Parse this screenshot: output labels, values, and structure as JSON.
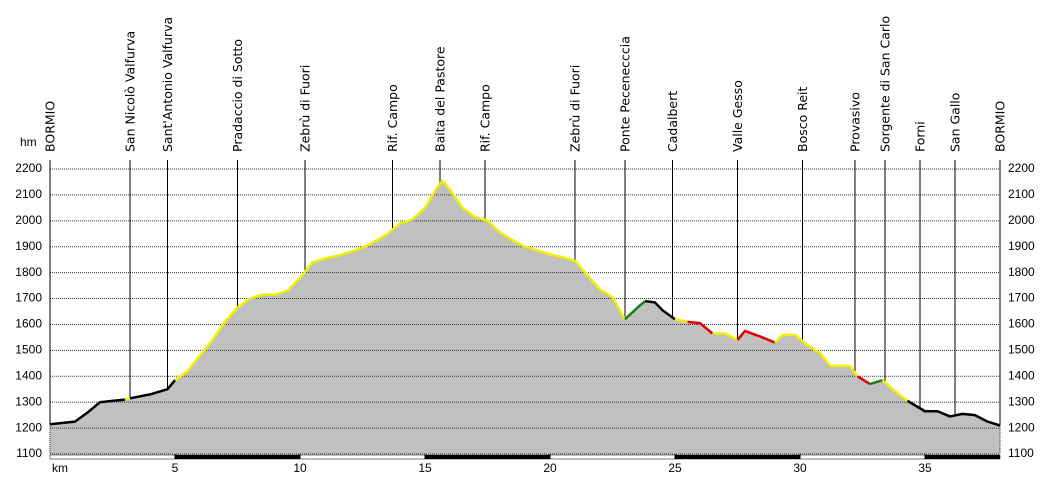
{
  "chart_data": {
    "type": "line",
    "x_label": "km",
    "y_label": "hm",
    "xlim": [
      0,
      38
    ],
    "xticks": [
      5,
      10,
      15,
      20,
      25,
      30,
      35
    ],
    "ylim": [
      1100,
      2200
    ],
    "yticks": [
      1100,
      1200,
      1300,
      1400,
      1500,
      1600,
      1700,
      1800,
      1900,
      2000,
      2100,
      2200
    ],
    "grid": true,
    "area_color": "#c0c0c0",
    "waypoints": [
      {
        "name": "BORMIO",
        "km": 0
      },
      {
        "name": "San Nicolò Valfurva",
        "km": 3.2
      },
      {
        "name": "Sant'Antonio Valfurva",
        "km": 4.7
      },
      {
        "name": "Pradaccio di Sotto",
        "km": 7.5
      },
      {
        "name": "Zebrù di Fuori",
        "km": 10.2
      },
      {
        "name": "Rif. Campo",
        "km": 13.7
      },
      {
        "name": "Baita del Pastore",
        "km": 15.6
      },
      {
        "name": "Rif. Campo",
        "km": 17.4
      },
      {
        "name": "Zebrù di Fuori",
        "km": 21
      },
      {
        "name": "Ponte Pecenecccia",
        "km": 23
      },
      {
        "name": "Cadalbert",
        "km": 24.9
      },
      {
        "name": "Valle Gesso",
        "km": 27.5
      },
      {
        "name": "Bosco Reit",
        "km": 30.1
      },
      {
        "name": "Provasivo",
        "km": 32.2
      },
      {
        "name": "Sorgente di San Carlo",
        "km": 33.4
      },
      {
        "name": "Forni",
        "km": 34.8
      },
      {
        "name": "San Gallo",
        "km": 36.2
      },
      {
        "name": "BORMIO",
        "km": 38
      }
    ],
    "series": [
      {
        "color": "#000000",
        "x": [
          0,
          1,
          1.5,
          2,
          2.5,
          3
        ],
        "values": [
          1215,
          1225,
          1260,
          1300,
          1305,
          1310
        ]
      },
      {
        "color": "#f0f000",
        "x": [
          3,
          3.2
        ],
        "values": [
          1310,
          1315
        ]
      },
      {
        "color": "#000000",
        "x": [
          3.2,
          4,
          4.7,
          5
        ],
        "values": [
          1315,
          1330,
          1350,
          1385
        ]
      },
      {
        "color": "#f0f000",
        "x": [
          5,
          5.5,
          6,
          6.5,
          7,
          7.5,
          8,
          8.5,
          9,
          9.5,
          10,
          10.5,
          11,
          11.5,
          12,
          12.5,
          13,
          13.5,
          14,
          14.5,
          15,
          15.5,
          15.7,
          16,
          16.5,
          17,
          17.5,
          18,
          18.5,
          19,
          19.5,
          20,
          20.5,
          21,
          21.5,
          22,
          22.5,
          23
        ],
        "values": [
          1385,
          1420,
          1480,
          1540,
          1610,
          1665,
          1700,
          1715,
          1715,
          1730,
          1780,
          1840,
          1855,
          1865,
          1880,
          1895,
          1920,
          1950,
          1990,
          2005,
          2050,
          2130,
          2155,
          2120,
          2050,
          2015,
          2000,
          1955,
          1925,
          1900,
          1885,
          1870,
          1860,
          1845,
          1790,
          1735,
          1705,
          1620
        ]
      },
      {
        "color": "#1a7a1a",
        "x": [
          23,
          23.5,
          23.8
        ],
        "values": [
          1620,
          1665,
          1690
        ]
      },
      {
        "color": "#000000",
        "x": [
          23.8,
          24.2,
          24.5,
          25
        ],
        "values": [
          1690,
          1685,
          1655,
          1620
        ]
      },
      {
        "color": "#f0f000",
        "x": [
          25,
          25.5
        ],
        "values": [
          1620,
          1610
        ]
      },
      {
        "color": "#e00000",
        "x": [
          25.5,
          26,
          26.5
        ],
        "values": [
          1610,
          1605,
          1565
        ]
      },
      {
        "color": "#f0f000",
        "x": [
          26.5,
          27,
          27.5
        ],
        "values": [
          1565,
          1565,
          1540
        ]
      },
      {
        "color": "#e00000",
        "x": [
          27.5,
          27.8,
          28.5,
          29
        ],
        "values": [
          1540,
          1575,
          1550,
          1530
        ]
      },
      {
        "color": "#f0f000",
        "x": [
          29,
          29.3,
          29.8,
          30.3,
          30.8,
          31.2,
          32,
          32.3
        ],
        "values": [
          1530,
          1560,
          1560,
          1520,
          1490,
          1440,
          1440,
          1400
        ]
      },
      {
        "color": "#e00000",
        "x": [
          32.3,
          32.8
        ],
        "values": [
          1400,
          1370
        ]
      },
      {
        "color": "#1a7a1a",
        "x": [
          32.8,
          33.3
        ],
        "values": [
          1370,
          1385
        ]
      },
      {
        "color": "#f0f000",
        "x": [
          33.3,
          33.7,
          34.3
        ],
        "values": [
          1385,
          1350,
          1305
        ]
      },
      {
        "color": "#000000",
        "x": [
          34.3,
          35,
          35.5,
          36,
          36.5,
          37,
          37.5,
          38
        ],
        "values": [
          1305,
          1265,
          1265,
          1245,
          1255,
          1250,
          1225,
          1210
        ]
      }
    ]
  }
}
